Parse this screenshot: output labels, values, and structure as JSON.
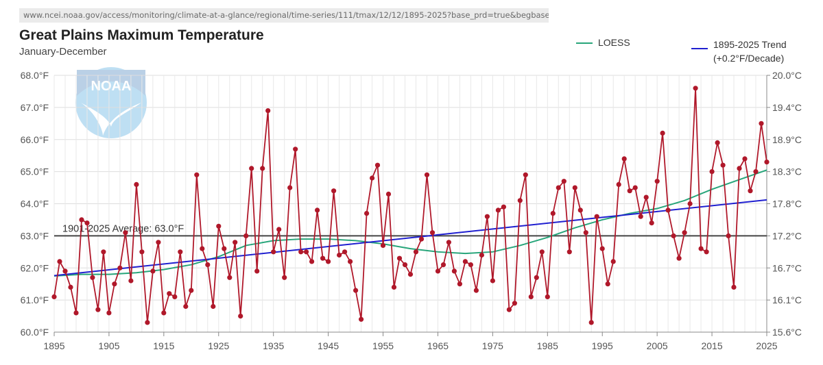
{
  "url": "www.ncei.noaa.gov/access/monitoring/climate-at-a-glance/regional/time-series/111/tmax/12/12/1895-2025?base_prd=true&begbaseyear=1901&",
  "url_domain": "noaa",
  "header": {
    "title": "Great Plains Maximum Temperature",
    "subtitle": "January-December"
  },
  "legend": {
    "loess": "LOESS",
    "trend_line1": "1895-2025 Trend",
    "trend_line2": "(+0.2°F/Decade)"
  },
  "logo_text": "NOAA",
  "colors": {
    "series": "#b0182a",
    "loess": "#27a57a",
    "trend": "#1f1fd0",
    "average": "#444444",
    "grid": "#dddddd"
  },
  "chart_data": {
    "type": "line",
    "title": "Great Plains Maximum Temperature",
    "subtitle": "January-December",
    "xlim": [
      1895,
      2025
    ],
    "ylim": [
      60.0,
      68.0
    ],
    "y2lim_celsius": [
      15.6,
      20.0
    ],
    "x_ticks": [
      "1895",
      "1905",
      "1915",
      "1925",
      "1935",
      "1945",
      "1955",
      "1965",
      "1975",
      "1985",
      "1995",
      "2005",
      "2015",
      "2025"
    ],
    "y_ticks": [
      "60.0°F",
      "61.0°F",
      "62.0°F",
      "63.0°F",
      "64.0°F",
      "65.0°F",
      "66.0°F",
      "67.0°F",
      "68.0°F"
    ],
    "y2_ticks": [
      "15.6°C",
      "16.1°C",
      "16.7°C",
      "17.2°C",
      "17.8°C",
      "18.3°C",
      "18.9°C",
      "19.4°C",
      "20.0°C"
    ],
    "average": {
      "value": 63.0,
      "label": "1901-2025 Average: 63.0°F"
    },
    "trend": {
      "name": "1895-2025 Trend",
      "start": [
        1895,
        61.76
      ],
      "end": [
        2025,
        64.12
      ]
    },
    "loess": {
      "name": "LOESS",
      "points": [
        [
          1895,
          61.75
        ],
        [
          1900,
          61.8
        ],
        [
          1905,
          61.8
        ],
        [
          1910,
          61.85
        ],
        [
          1915,
          61.95
        ],
        [
          1920,
          62.1
        ],
        [
          1925,
          62.35
        ],
        [
          1930,
          62.7
        ],
        [
          1935,
          62.85
        ],
        [
          1940,
          62.9
        ],
        [
          1945,
          62.9
        ],
        [
          1950,
          62.85
        ],
        [
          1955,
          62.75
        ],
        [
          1960,
          62.6
        ],
        [
          1965,
          62.5
        ],
        [
          1970,
          62.45
        ],
        [
          1975,
          62.5
        ],
        [
          1980,
          62.7
        ],
        [
          1985,
          62.95
        ],
        [
          1990,
          63.25
        ],
        [
          1995,
          63.5
        ],
        [
          2000,
          63.7
        ],
        [
          2005,
          63.85
        ],
        [
          2010,
          64.1
        ],
        [
          2015,
          64.45
        ],
        [
          2020,
          64.75
        ],
        [
          2025,
          65.05
        ]
      ]
    },
    "series": [
      {
        "name": "",
        "x_start": 1895,
        "values": [
          61.1,
          62.2,
          61.9,
          61.4,
          60.6,
          63.5,
          63.4,
          61.7,
          60.7,
          62.5,
          60.6,
          61.5,
          62.0,
          63.1,
          61.6,
          64.6,
          62.5,
          60.3,
          61.9,
          62.8,
          60.6,
          61.2,
          61.1,
          62.5,
          60.8,
          61.3,
          64.9,
          62.6,
          62.1,
          60.8,
          63.3,
          62.6,
          61.7,
          62.8,
          60.5,
          63.0,
          65.1,
          61.9,
          65.1,
          66.9,
          62.5,
          63.2,
          61.7,
          64.5,
          65.7,
          62.5,
          62.5,
          62.2,
          63.8,
          62.3,
          62.2,
          64.4,
          62.4,
          62.5,
          62.2,
          61.3,
          60.4,
          63.7,
          64.8,
          65.2,
          62.7,
          64.3,
          61.4,
          62.3,
          62.1,
          61.8,
          62.5,
          62.9,
          64.9,
          63.1,
          61.9,
          62.1,
          62.8,
          61.9,
          61.5,
          62.2,
          62.1,
          61.3,
          62.4,
          63.6,
          61.6,
          63.8,
          63.9,
          60.7,
          60.9,
          64.1,
          64.9,
          61.1,
          61.7,
          62.5,
          61.1,
          63.7,
          64.5,
          64.7,
          62.5,
          64.5,
          63.8,
          63.1,
          60.3,
          63.6,
          62.6,
          61.5,
          62.2,
          64.6,
          65.4,
          64.4,
          64.5,
          63.6,
          64.2,
          63.4,
          64.7,
          66.2,
          63.8,
          63.0,
          62.3,
          63.1,
          64.0,
          67.6,
          62.6,
          62.5,
          65.0,
          65.9,
          65.2,
          63.0,
          61.4,
          65.1,
          65.4,
          64.4,
          65.0,
          66.5,
          65.3
        ]
      }
    ]
  }
}
